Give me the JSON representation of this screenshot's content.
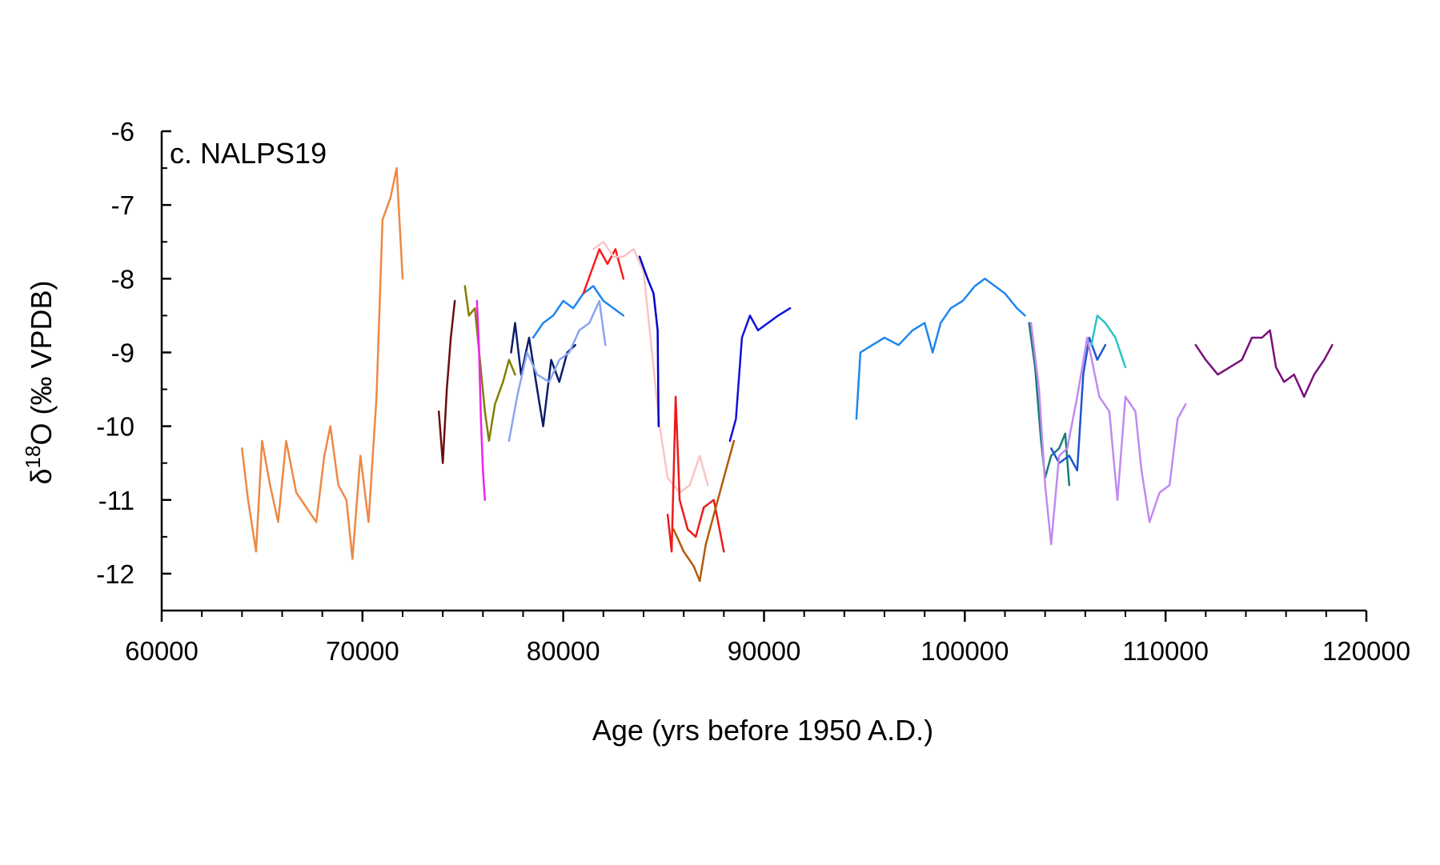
{
  "chart_data": {
    "type": "line",
    "title": "",
    "panel_label": "c. NALPS19",
    "xlabel": "Age (yrs before 1950 A.D.)",
    "ylabel": {
      "delta": "δ",
      "superscript": "18",
      "species": "O",
      "units": " (‰ VPDB)"
    },
    "xlim": [
      60000,
      120000
    ],
    "ylim": [
      -12.5,
      -6
    ],
    "x_ticks": [
      60000,
      70000,
      80000,
      90000,
      100000,
      110000,
      120000
    ],
    "x_tick_labels": [
      "60000",
      "70000",
      "80000",
      "90000",
      "100000",
      "110000",
      "120000"
    ],
    "y_ticks": [
      -6,
      -7,
      -8,
      -9,
      -10,
      -11,
      -12
    ],
    "y_tick_labels": [
      "-6",
      "-7",
      "-8",
      "-9",
      "-10",
      "-11",
      "-12"
    ],
    "grid": false,
    "legend": "none",
    "series": [
      {
        "color": "#ee8844",
        "points": [
          [
            64000,
            -10.3
          ],
          [
            64300,
            -11.0
          ],
          [
            64700,
            -11.7
          ],
          [
            65000,
            -10.2
          ],
          [
            65400,
            -10.8
          ],
          [
            65800,
            -11.3
          ],
          [
            66200,
            -10.2
          ],
          [
            66700,
            -10.9
          ],
          [
            67200,
            -11.1
          ],
          [
            67700,
            -11.3
          ],
          [
            68100,
            -10.4
          ],
          [
            68400,
            -10.0
          ],
          [
            68800,
            -10.8
          ],
          [
            69200,
            -11.0
          ],
          [
            69500,
            -11.8
          ],
          [
            69900,
            -10.4
          ],
          [
            70300,
            -11.3
          ],
          [
            70700,
            -9.6
          ],
          [
            71000,
            -7.2
          ],
          [
            71400,
            -6.9
          ],
          [
            71700,
            -6.5
          ],
          [
            72000,
            -8.0
          ]
        ]
      },
      {
        "color": "#6b0d0d",
        "points": [
          [
            73800,
            -9.8
          ],
          [
            74000,
            -10.5
          ],
          [
            74200,
            -9.5
          ],
          [
            74400,
            -8.8
          ],
          [
            74600,
            -8.3
          ]
        ]
      },
      {
        "color": "#808000",
        "points": [
          [
            75100,
            -8.1
          ],
          [
            75300,
            -8.5
          ],
          [
            75600,
            -8.4
          ],
          [
            76100,
            -9.8
          ],
          [
            76300,
            -10.2
          ],
          [
            76600,
            -9.7
          ],
          [
            77000,
            -9.4
          ],
          [
            77300,
            -9.1
          ],
          [
            77600,
            -9.3
          ]
        ]
      },
      {
        "color": "#ee22ee",
        "points": [
          [
            75700,
            -8.3
          ],
          [
            75800,
            -8.9
          ],
          [
            75900,
            -9.9
          ],
          [
            76000,
            -10.6
          ],
          [
            76100,
            -11.0
          ]
        ]
      },
      {
        "color": "#0b1d6b",
        "points": [
          [
            77400,
            -9.0
          ],
          [
            77600,
            -8.6
          ],
          [
            77900,
            -9.3
          ],
          [
            78300,
            -8.8
          ],
          [
            78700,
            -9.5
          ],
          [
            79000,
            -10.0
          ],
          [
            79400,
            -9.1
          ],
          [
            79800,
            -9.4
          ],
          [
            80200,
            -9.0
          ],
          [
            80600,
            -8.9
          ]
        ]
      },
      {
        "color": "#1f86ee",
        "points": [
          [
            78500,
            -8.8
          ],
          [
            79000,
            -8.6
          ],
          [
            79500,
            -8.5
          ],
          [
            80000,
            -8.3
          ],
          [
            80500,
            -8.4
          ],
          [
            81000,
            -8.2
          ],
          [
            81500,
            -8.1
          ],
          [
            82000,
            -8.3
          ],
          [
            82500,
            -8.4
          ],
          [
            83000,
            -8.5
          ]
        ]
      },
      {
        "color": "#8aa5f0",
        "points": [
          [
            77300,
            -10.2
          ],
          [
            77700,
            -9.6
          ],
          [
            78200,
            -9.0
          ],
          [
            78700,
            -9.3
          ],
          [
            79300,
            -9.4
          ],
          [
            79800,
            -9.1
          ],
          [
            80300,
            -9.0
          ],
          [
            80800,
            -8.7
          ],
          [
            81300,
            -8.6
          ],
          [
            81800,
            -8.3
          ],
          [
            82100,
            -8.9
          ]
        ]
      },
      {
        "color": "#ff1a1a",
        "points": [
          [
            81000,
            -8.2
          ],
          [
            81400,
            -7.9
          ],
          [
            81800,
            -7.6
          ],
          [
            82200,
            -7.8
          ],
          [
            82600,
            -7.6
          ],
          [
            83000,
            -8.0
          ]
        ]
      },
      {
        "color": "#f9c4c4",
        "points": [
          [
            81500,
            -7.6
          ],
          [
            82000,
            -7.5
          ],
          [
            82500,
            -7.7
          ],
          [
            83000,
            -7.7
          ],
          [
            83500,
            -7.6
          ],
          [
            84000,
            -7.9
          ],
          [
            84800,
            -10.0
          ],
          [
            85200,
            -10.7
          ],
          [
            85800,
            -10.9
          ],
          [
            86300,
            -10.8
          ],
          [
            86800,
            -10.4
          ],
          [
            87200,
            -10.8
          ]
        ]
      },
      {
        "color": "#0000cc",
        "points": [
          [
            83800,
            -7.7
          ],
          [
            84200,
            -8.0
          ],
          [
            84500,
            -8.2
          ],
          [
            84700,
            -8.7
          ],
          [
            84750,
            -10.0
          ]
        ]
      },
      {
        "color": "#ee1a1a",
        "points": [
          [
            85200,
            -11.2
          ],
          [
            85400,
            -11.7
          ],
          [
            85600,
            -9.6
          ],
          [
            85800,
            -11.0
          ],
          [
            86200,
            -11.4
          ],
          [
            86600,
            -11.5
          ],
          [
            87000,
            -11.1
          ],
          [
            87500,
            -11.0
          ],
          [
            88000,
            -11.7
          ]
        ]
      },
      {
        "color": "#b35a06",
        "points": [
          [
            85500,
            -11.4
          ],
          [
            86000,
            -11.7
          ],
          [
            86500,
            -11.9
          ],
          [
            86800,
            -12.1
          ],
          [
            87100,
            -11.6
          ],
          [
            87500,
            -11.2
          ],
          [
            88000,
            -10.7
          ],
          [
            88500,
            -10.2
          ]
        ]
      },
      {
        "color": "#1010dd",
        "points": [
          [
            88300,
            -10.2
          ],
          [
            88600,
            -9.9
          ],
          [
            88900,
            -8.8
          ],
          [
            89300,
            -8.5
          ],
          [
            89700,
            -8.7
          ],
          [
            90200,
            -8.6
          ],
          [
            90700,
            -8.5
          ],
          [
            91300,
            -8.4
          ]
        ]
      },
      {
        "color": "#1f86ee",
        "points": [
          [
            94600,
            -9.9
          ],
          [
            94800,
            -9.0
          ],
          [
            95400,
            -8.9
          ],
          [
            96000,
            -8.8
          ],
          [
            96700,
            -8.9
          ],
          [
            97400,
            -8.7
          ],
          [
            98000,
            -8.6
          ],
          [
            98400,
            -9.0
          ],
          [
            98800,
            -8.6
          ],
          [
            99300,
            -8.4
          ],
          [
            99900,
            -8.3
          ],
          [
            100500,
            -8.1
          ],
          [
            101000,
            -8.0
          ],
          [
            101500,
            -8.1
          ],
          [
            102000,
            -8.2
          ],
          [
            102600,
            -8.4
          ],
          [
            103000,
            -8.5
          ]
        ]
      },
      {
        "color": "#1a7a7a",
        "points": [
          [
            103200,
            -8.6
          ],
          [
            103500,
            -9.2
          ],
          [
            103800,
            -10.2
          ],
          [
            104000,
            -10.7
          ],
          [
            104300,
            -10.4
          ],
          [
            104700,
            -10.3
          ],
          [
            105000,
            -10.1
          ],
          [
            105200,
            -10.8
          ]
        ]
      },
      {
        "color": "#1d55cc",
        "points": [
          [
            104300,
            -10.3
          ],
          [
            104700,
            -10.5
          ],
          [
            105200,
            -10.4
          ],
          [
            105600,
            -10.6
          ],
          [
            105900,
            -9.3
          ],
          [
            106200,
            -8.8
          ],
          [
            106600,
            -9.1
          ],
          [
            107000,
            -8.9
          ]
        ]
      },
      {
        "color": "#c08af0",
        "points": [
          [
            103300,
            -8.6
          ],
          [
            103700,
            -9.5
          ],
          [
            104000,
            -10.8
          ],
          [
            104300,
            -11.6
          ],
          [
            104700,
            -10.4
          ],
          [
            105100,
            -10.3
          ],
          [
            105600,
            -9.6
          ],
          [
            106100,
            -8.8
          ],
          [
            106700,
            -9.6
          ],
          [
            107200,
            -9.8
          ],
          [
            107600,
            -11.0
          ],
          [
            108000,
            -9.6
          ],
          [
            108500,
            -9.8
          ],
          [
            108800,
            -10.6
          ],
          [
            109200,
            -11.3
          ],
          [
            109700,
            -10.9
          ],
          [
            110200,
            -10.8
          ],
          [
            110600,
            -9.9
          ],
          [
            111000,
            -9.7
          ]
        ]
      },
      {
        "color": "#2bc3c3",
        "points": [
          [
            106300,
            -8.9
          ],
          [
            106600,
            -8.5
          ],
          [
            107000,
            -8.6
          ],
          [
            107500,
            -8.8
          ],
          [
            108000,
            -9.2
          ]
        ]
      },
      {
        "color": "#7a0f7a",
        "points": [
          [
            111500,
            -8.9
          ],
          [
            112000,
            -9.1
          ],
          [
            112600,
            -9.3
          ],
          [
            113200,
            -9.2
          ],
          [
            113800,
            -9.1
          ],
          [
            114300,
            -8.8
          ],
          [
            114800,
            -8.8
          ],
          [
            115200,
            -8.7
          ],
          [
            115500,
            -9.2
          ],
          [
            115900,
            -9.4
          ],
          [
            116400,
            -9.3
          ],
          [
            116900,
            -9.6
          ],
          [
            117400,
            -9.3
          ],
          [
            117900,
            -9.1
          ],
          [
            118300,
            -8.9
          ]
        ]
      }
    ]
  }
}
